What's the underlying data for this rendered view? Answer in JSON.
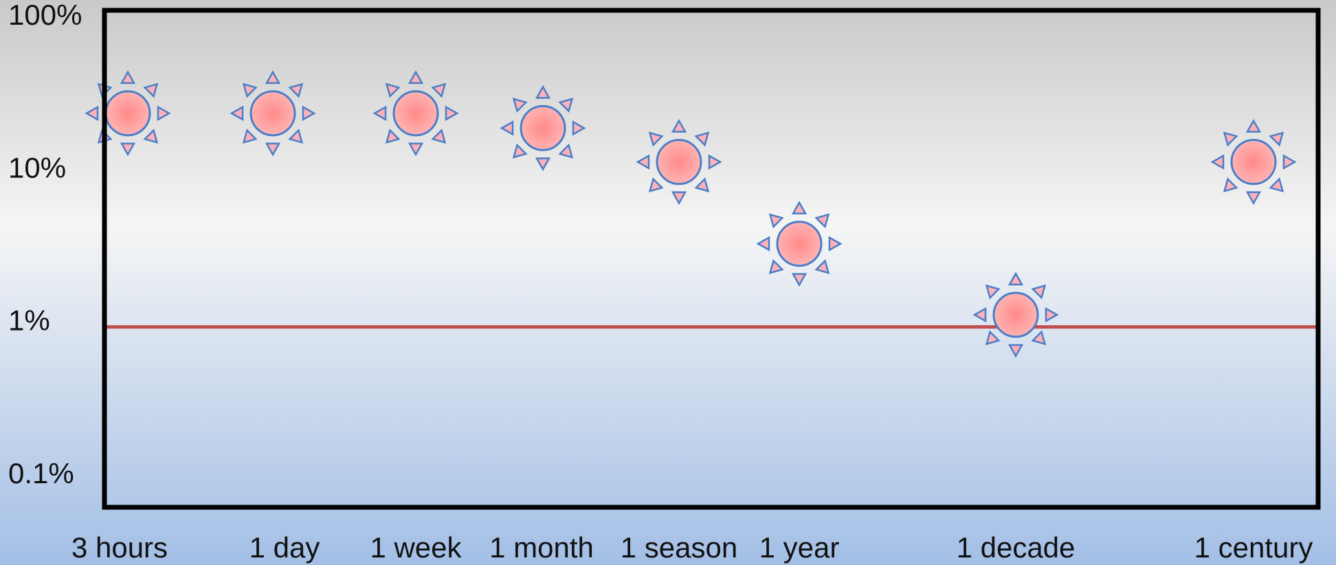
{
  "chart_data": {
    "type": "scatter",
    "categories": [
      "3 hours",
      "1 day",
      "1 week",
      "1 month",
      "1 season",
      "1 year",
      "1 decade",
      "1 century"
    ],
    "values": [
      25,
      25,
      25,
      20,
      12,
      3.5,
      1.2,
      12
    ],
    "color": "#ff8a8a",
    "edge_color": "#4a7ec8",
    "log_scale": true,
    "ylim": [
      0.066,
      118
    ],
    "yticks": [
      {
        "value": 100,
        "label": "100%"
      },
      {
        "value": 10,
        "label": "10%"
      },
      {
        "value": 1,
        "label": "1%"
      },
      {
        "value": 0.1,
        "label": "0.1%"
      }
    ],
    "threshold": 1,
    "threshold_color": "#c0504d"
  }
}
